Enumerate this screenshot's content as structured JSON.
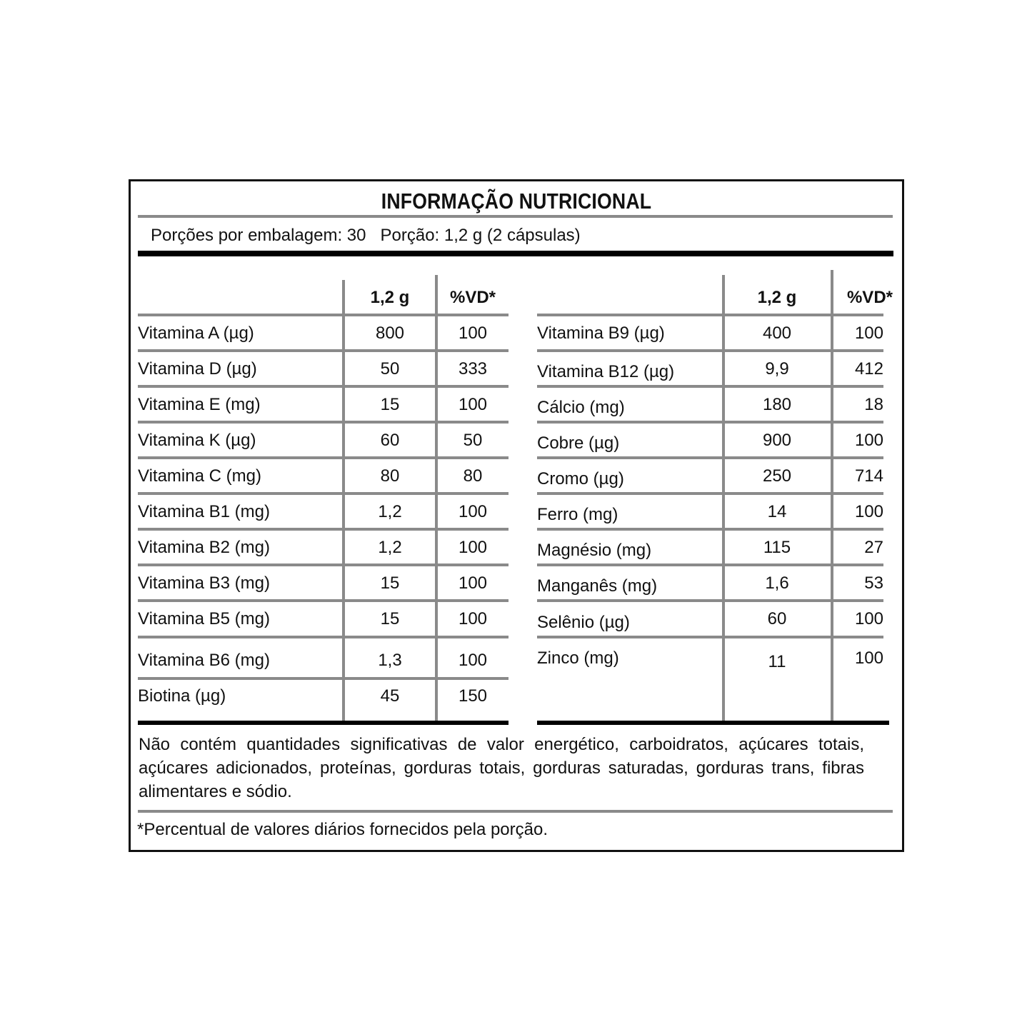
{
  "title": "INFORMAÇÃO NUTRICIONAL",
  "portion_line": "Porções por embalagem: 30   Porção: 1,2 g (2 cápsulas)",
  "headers": {
    "amount": "1,2 g",
    "dv": "%VD*"
  },
  "left_table": [
    {
      "name": "Vitamina A (µg)",
      "amount": "800",
      "dv": "100"
    },
    {
      "name": "Vitamina D (µg)",
      "amount": "50",
      "dv": "333"
    },
    {
      "name": "Vitamina E (mg)",
      "amount": "15",
      "dv": "100"
    },
    {
      "name": "Vitamina K (µg)",
      "amount": "60",
      "dv": "50"
    },
    {
      "name": "Vitamina C (mg)",
      "amount": "80",
      "dv": "80"
    },
    {
      "name": "Vitamina B1 (mg)",
      "amount": "1,2",
      "dv": "100"
    },
    {
      "name": "Vitamina B2 (mg)",
      "amount": "1,2",
      "dv": "100"
    },
    {
      "name": "Vitamina B3 (mg)",
      "amount": "15",
      "dv": "100"
    },
    {
      "name": "Vitamina B5 (mg)",
      "amount": "15",
      "dv": "100"
    },
    {
      "name": "Vitamina B6 (mg)",
      "amount": "1,3",
      "dv": "100"
    },
    {
      "name": "Biotina (µg)",
      "amount": "45",
      "dv": "150"
    }
  ],
  "right_table": [
    {
      "name": "Vitamina B9 (µg)",
      "amount": "400",
      "dv": "100"
    },
    {
      "name": "Vitamina B12 (µg)",
      "amount": "9,9",
      "dv": "412"
    },
    {
      "name": "Cálcio (mg)",
      "amount": "180",
      "dv": "18"
    },
    {
      "name": "Cobre (µg)",
      "amount": "900",
      "dv": "100"
    },
    {
      "name": "Cromo (µg)",
      "amount": "250",
      "dv": "714"
    },
    {
      "name": "Ferro (mg)",
      "amount": "14",
      "dv": "100"
    },
    {
      "name": "Magnésio (mg)",
      "amount": "115",
      "dv": "27"
    },
    {
      "name": "Manganês (mg)",
      "amount": "1,6",
      "dv": "53"
    },
    {
      "name": "Selênio (µg)",
      "amount": "60",
      "dv": "100"
    },
    {
      "name": "Zinco (mg)",
      "amount": "11",
      "dv": "100"
    }
  ],
  "note": "Não contém quantidades significativas de valor energético, carboidratos, açúcares totais, açúcares adicionados, proteínas, gorduras totais, gorduras saturadas, gorduras trans, fibras alimentares e sódio.",
  "footnote": "*Percentual de valores diários fornecidos pela porção."
}
